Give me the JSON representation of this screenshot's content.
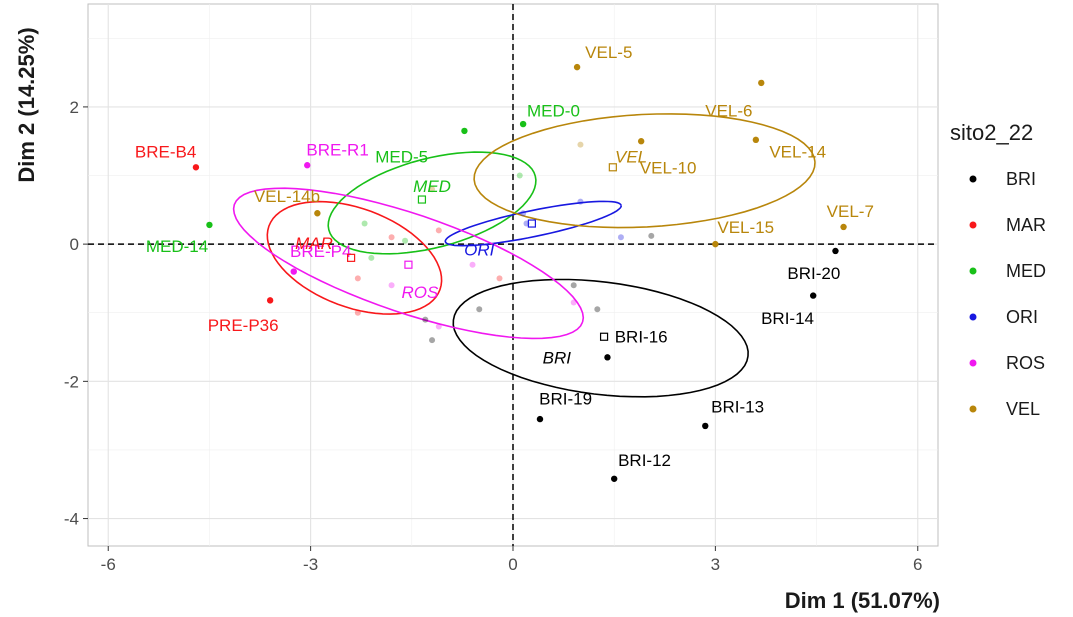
{
  "chart_data": {
    "type": "scatter",
    "xlabel": "Dim 1 (51.07%)",
    "ylabel": "Dim 2 (14.25%)",
    "xlim": [
      -6.3,
      6.3
    ],
    "ylim": [
      -4.4,
      3.5
    ],
    "xticks": [
      -6,
      -3,
      0,
      3,
      6
    ],
    "yticks": [
      -4,
      -2,
      0,
      2
    ],
    "grid": true,
    "reference_lines": [
      {
        "axis": "x",
        "value": 0
      },
      {
        "axis": "y",
        "value": 0
      }
    ],
    "legend": {
      "title": "sito2_22",
      "placement": "right"
    },
    "groups": [
      {
        "name": "BRI",
        "color": "#000000"
      },
      {
        "name": "MAR",
        "color": "#f8181b"
      },
      {
        "name": "MED",
        "color": "#18c018"
      },
      {
        "name": "ORI",
        "color": "#1818e0"
      },
      {
        "name": "ROS",
        "color": "#f018f0"
      },
      {
        "name": "VEL",
        "color": "#b8860b"
      }
    ],
    "labeled_points": [
      {
        "group": "BRI",
        "label": "BRI-20",
        "x": 4.78,
        "y": -0.1,
        "lx": 4.46,
        "ly": -0.42
      },
      {
        "group": "BRI",
        "label": "BRI-14",
        "x": 4.45,
        "y": -0.75,
        "lx": 4.07,
        "ly": -1.08
      },
      {
        "group": "BRI",
        "label": "BRI-16",
        "x": 1.4,
        "y": -1.65,
        "lx": 1.9,
        "ly": -1.35
      },
      {
        "group": "BRI",
        "label": "BRI-19",
        "x": 0.4,
        "y": -2.55,
        "lx": 0.78,
        "ly": -2.25
      },
      {
        "group": "BRI",
        "label": "BRI-13",
        "x": 2.85,
        "y": -2.65,
        "lx": 3.33,
        "ly": -2.37
      },
      {
        "group": "BRI",
        "label": "BRI-12",
        "x": 1.5,
        "y": -3.42,
        "lx": 1.95,
        "ly": -3.15
      },
      {
        "group": "MAR",
        "label": "BRE-B4",
        "x": -4.7,
        "y": 1.12,
        "lx": -5.15,
        "ly": 1.35
      },
      {
        "group": "MAR",
        "label": "PRE-P36",
        "x": -3.6,
        "y": -0.82,
        "lx": -4.0,
        "ly": -1.18
      },
      {
        "group": "MED",
        "label": "MED-14",
        "x": -4.5,
        "y": 0.28,
        "lx": -4.98,
        "ly": -0.03
      },
      {
        "group": "MED",
        "label": "MED-5",
        "x": -0.72,
        "y": 1.65,
        "lx": -1.65,
        "ly": 1.28
      },
      {
        "group": "MED",
        "label": "MED-0",
        "x": 0.15,
        "y": 1.75,
        "lx": 0.6,
        "ly": 1.95
      },
      {
        "group": "ROS",
        "label": "BRE-R1",
        "x": -3.05,
        "y": 1.15,
        "lx": -2.6,
        "ly": 1.38
      },
      {
        "group": "ROS",
        "label": "BRE-P4",
        "x": -3.25,
        "y": -0.4,
        "lx": -2.85,
        "ly": -0.1
      },
      {
        "group": "VEL",
        "label": "VEL-5",
        "x": 0.95,
        "y": 2.58,
        "lx": 1.42,
        "ly": 2.8
      },
      {
        "group": "VEL",
        "label": "VEL-6",
        "x": 3.68,
        "y": 2.35,
        "lx": 3.2,
        "ly": 1.95
      },
      {
        "group": "VEL",
        "label": "VEL-14",
        "x": 3.6,
        "y": 1.52,
        "lx": 4.22,
        "ly": 1.35
      },
      {
        "group": "VEL",
        "label": "VEL-10",
        "x": 1.9,
        "y": 1.5,
        "lx": 2.3,
        "ly": 1.12
      },
      {
        "group": "VEL",
        "label": "VEL-14b",
        "x": -2.9,
        "y": 0.45,
        "lx": -3.35,
        "ly": 0.7
      },
      {
        "group": "VEL",
        "label": "VEL-15",
        "x": 3.0,
        "y": 0.0,
        "lx": 3.45,
        "ly": 0.25
      },
      {
        "group": "VEL",
        "label": "VEL-7",
        "x": 4.9,
        "y": 0.25,
        "lx": 5.0,
        "ly": 0.48
      }
    ],
    "faded_points": [
      {
        "group": "MED",
        "x": -2.2,
        "y": 0.3
      },
      {
        "group": "MED",
        "x": -1.6,
        "y": 0.05
      },
      {
        "group": "MED",
        "x": -2.1,
        "y": -0.2
      },
      {
        "group": "MED",
        "x": 0.1,
        "y": 1.0
      },
      {
        "group": "MAR",
        "x": -2.3,
        "y": -0.5
      },
      {
        "group": "MAR",
        "x": -1.8,
        "y": 0.1
      },
      {
        "group": "MAR",
        "x": -2.3,
        "y": -1.0
      },
      {
        "group": "MAR",
        "x": -0.2,
        "y": -0.5
      },
      {
        "group": "MAR",
        "x": -1.1,
        "y": 0.2
      },
      {
        "group": "ROS",
        "x": -1.8,
        "y": -0.6
      },
      {
        "group": "ROS",
        "x": -0.6,
        "y": -0.3
      },
      {
        "group": "ROS",
        "x": 0.9,
        "y": -0.85
      },
      {
        "group": "ROS",
        "x": -1.1,
        "y": -1.2
      },
      {
        "group": "BRI",
        "x": -1.3,
        "y": -1.1
      },
      {
        "group": "BRI",
        "x": -1.2,
        "y": -1.4
      },
      {
        "group": "BRI",
        "x": -0.5,
        "y": -0.95
      },
      {
        "group": "BRI",
        "x": 0.9,
        "y": -0.6
      },
      {
        "group": "BRI",
        "x": 1.25,
        "y": -0.95
      },
      {
        "group": "BRI",
        "x": 2.05,
        "y": 0.12
      },
      {
        "group": "ORI",
        "x": 0.15,
        "y": 0.45
      },
      {
        "group": "ORI",
        "x": 1.0,
        "y": 0.62
      },
      {
        "group": "ORI",
        "x": 1.6,
        "y": 0.1
      },
      {
        "group": "ORI",
        "x": 0.2,
        "y": 0.3
      },
      {
        "group": "VEL",
        "x": 1.0,
        "y": 1.45
      },
      {
        "group": "VEL",
        "x": -1.2,
        "y": 0.8
      }
    ],
    "centroids": [
      {
        "group": "BRI",
        "label": "BRI",
        "x": 1.35,
        "y": -1.35,
        "lx": 0.65,
        "ly": -1.65
      },
      {
        "group": "MAR",
        "label": "MAR",
        "x": -2.4,
        "y": -0.2,
        "lx": -2.95,
        "ly": 0.02
      },
      {
        "group": "MED",
        "label": "MED",
        "x": -1.35,
        "y": 0.65,
        "lx": -1.2,
        "ly": 0.85
      },
      {
        "group": "ORI",
        "label": "ORI",
        "x": 0.28,
        "y": 0.3,
        "lx": -0.5,
        "ly": -0.08
      },
      {
        "group": "ROS",
        "label": "ROS",
        "x": -1.55,
        "y": -0.3,
        "lx": -1.38,
        "ly": -0.7
      },
      {
        "group": "VEL",
        "label": "VEL",
        "x": 1.48,
        "y": 1.12,
        "lx": 1.75,
        "ly": 1.28
      }
    ],
    "ellipses": [
      {
        "group": "BRI",
        "cx": 1.3,
        "cy": -1.37,
        "rx": 2.2,
        "ry": 0.82,
        "angle": -0.12
      },
      {
        "group": "MAR",
        "cx": -2.35,
        "cy": -0.2,
        "rx": 1.35,
        "ry": 0.72,
        "angle": -0.35
      },
      {
        "group": "MED",
        "cx": -1.2,
        "cy": 0.6,
        "rx": 1.58,
        "ry": 0.65,
        "angle": 0.25
      },
      {
        "group": "ORI",
        "cx": 0.3,
        "cy": 0.3,
        "rx": 1.33,
        "ry": 0.19,
        "angle": 0.2
      },
      {
        "group": "ROS",
        "cx": -1.55,
        "cy": -0.28,
        "rx": 2.72,
        "ry": 0.72,
        "angle": -0.32
      },
      {
        "group": "VEL",
        "cx": 1.95,
        "cy": 1.07,
        "rx": 2.53,
        "ry": 0.82,
        "angle": 0.05
      }
    ]
  }
}
